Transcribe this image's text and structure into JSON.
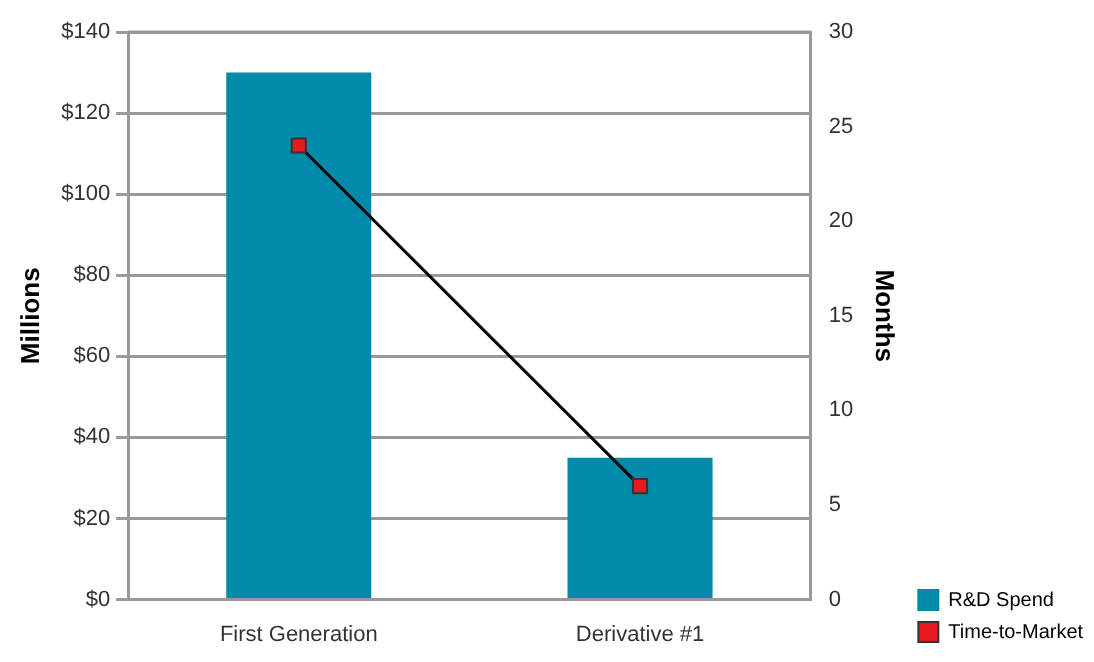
{
  "chart_data": {
    "type": "bar",
    "categories": [
      "First Generation",
      "Derivative #1"
    ],
    "ylabel": "Millions",
    "y2label": "Months",
    "series": [
      {
        "name": "R&D Spend",
        "color": "#008ba8",
        "values": [
          130,
          35
        ]
      },
      {
        "name": "Time-to-Market",
        "type": "line",
        "axis": "y2",
        "color": "#000000",
        "marker": "square",
        "values": [
          24,
          6
        ]
      }
    ],
    "ylim": [
      0,
      140
    ],
    "yticks": [
      {
        "value": 0,
        "label": "$0"
      },
      {
        "value": 20,
        "label": "$20"
      },
      {
        "value": 40,
        "label": "$40"
      },
      {
        "value": 60,
        "label": "$60"
      },
      {
        "value": 80,
        "label": "$80"
      },
      {
        "value": 100,
        "label": "$100"
      },
      {
        "value": 120,
        "label": "$120"
      },
      {
        "value": 140,
        "label": "$140"
      }
    ],
    "y2lim": [
      0,
      30
    ],
    "y2ticks": [
      0,
      5,
      10,
      15,
      20,
      25,
      30
    ],
    "grid": "y",
    "legend": "bottom right"
  }
}
